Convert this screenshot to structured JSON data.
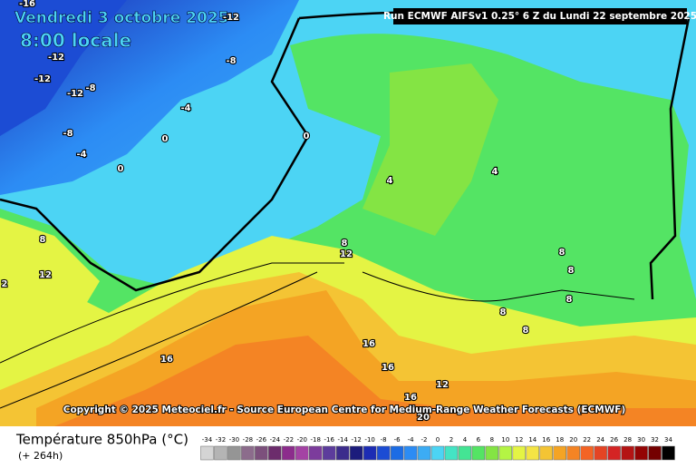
{
  "header": {
    "date": "Vendredi 3 octobre 2025",
    "time": "8:00 locale",
    "run": "Run ECMWF AIFSv1 0.25° 6 Z du Lundi 22 septembre 2025"
  },
  "copyright": "Copyright © 2025 Meteociel.fr - Source European Centre for Medium-Range Weather Forecasts (ECMWF)",
  "legend": {
    "title": "Température 850hPa (°C)",
    "subtitle": "(+ 264h)",
    "scale": [
      -34,
      -32,
      -30,
      -28,
      -26,
      -24,
      -22,
      -20,
      -18,
      -16,
      -14,
      -12,
      -10,
      -8,
      -6,
      -4,
      -2,
      0,
      2,
      4,
      6,
      8,
      10,
      12,
      14,
      16,
      18,
      20,
      22,
      24,
      26,
      28,
      30,
      32,
      34
    ],
    "colors": [
      "#d4d4d4",
      "#b4b4b4",
      "#959595",
      "#8c6c8c",
      "#7c507c",
      "#6c2c6c",
      "#8c2c8c",
      "#a442a4",
      "#7c3c9c",
      "#5c3c9c",
      "#3c2c8c",
      "#1c1c7c",
      "#1c2cb4",
      "#1c4cd4",
      "#1c6ce4",
      "#2c8cf4",
      "#3cacf4",
      "#4cd4f4",
      "#44e4c4",
      "#44e494",
      "#54e464",
      "#84e444",
      "#b4f444",
      "#e4f444",
      "#f4e444",
      "#f4c434",
      "#f4a424",
      "#f48424",
      "#f46424",
      "#e44424",
      "#d42424",
      "#b41414",
      "#940404",
      "#740000",
      "#000000"
    ]
  },
  "contour_labels": [
    -16,
    -12,
    -12,
    -8,
    -12,
    -8,
    -12,
    -4,
    -8,
    0,
    0,
    -4,
    0,
    4,
    4,
    8,
    12,
    2,
    8,
    12,
    8,
    8,
    8,
    8,
    8,
    16,
    16,
    16,
    12,
    16,
    20
  ]
}
